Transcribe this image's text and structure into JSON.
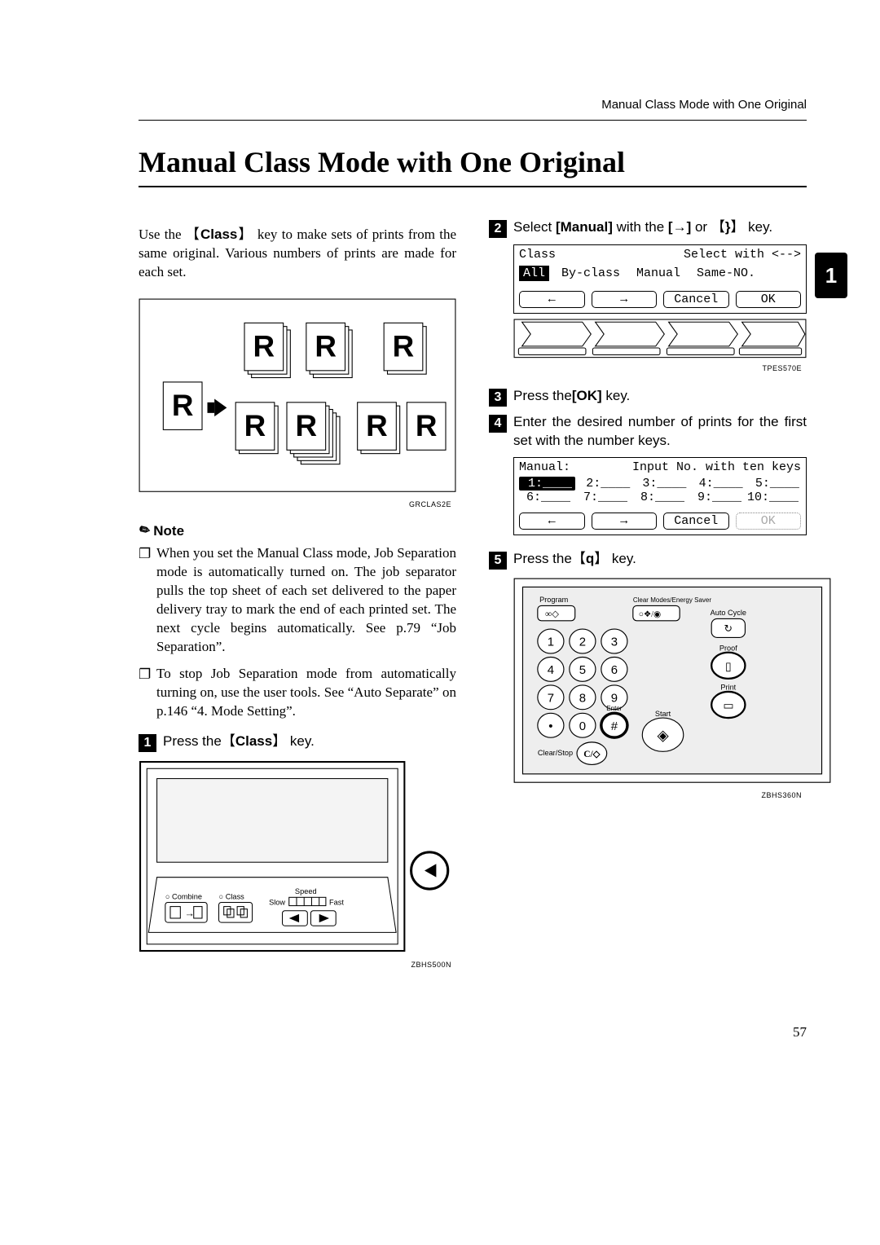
{
  "running_header": "Manual Class Mode with One Original",
  "section_title": "Manual Class Mode with One Original",
  "side_tab": "1",
  "intro_parts": {
    "a": "Use the ",
    "key": "Class",
    "b": " key to make sets of prints from the same original. Various numbers of prints are made for each set."
  },
  "fig_codes": {
    "fig1": "GRCLAS2E",
    "fig2": "ZBHS500N",
    "fig3": "TPES570E",
    "fig4": "ZBHS360N"
  },
  "note_label": "Note",
  "notes": [
    "When you set the Manual Class mode, Job Separation mode is automatically turned on. The job separator pulls the top sheet of each set delivered to the paper delivery tray to mark the end of each printed set. The next cycle begins automatically. See p.79 “Job Separation”.",
    "To stop Job Separation mode from automatically turning on, use the user tools. See “Auto Separate” on p.146 “4. Mode Setting”."
  ],
  "steps": {
    "1": {
      "pre": "Press the",
      "key": "Class",
      "post": " key."
    },
    "2": {
      "pre": "Select ",
      "bold": "[Manual]",
      "mid": " with the ",
      "arrow1": "[→]",
      "or": " or ",
      "arrow2": "}",
      "post": " key."
    },
    "3": {
      "pre": "Press the",
      "bold": "[OK]",
      "post": " key."
    },
    "4": {
      "text": "Enter the desired number of prints for the first set with the number keys."
    },
    "5": {
      "pre": "Press the",
      "key": "q",
      "post": " key."
    }
  },
  "lcd1": {
    "title_left": "Class",
    "title_right": "Select with <-->",
    "tabs": [
      "All",
      "By-class",
      "Manual",
      "Same-NO."
    ],
    "selected_tab_index": 0,
    "buttons": [
      "←",
      "→",
      "Cancel",
      "OK"
    ]
  },
  "lcd2": {
    "title_left": "Manual:",
    "title_right": "Input No. with ten keys",
    "rows": [
      [
        " 1:____",
        " 2:____",
        " 3:____",
        " 4:____",
        " 5:____"
      ],
      [
        " 6:____",
        " 7:____",
        " 8:____",
        " 9:____",
        "10:____"
      ]
    ],
    "selected_cell": "1",
    "buttons": [
      "←",
      "→",
      "Cancel",
      "OK"
    ],
    "disabled_button_index": 3
  },
  "panel_labels": {
    "combine": "Combine",
    "class": "Class",
    "speed": "Speed",
    "slow": "Slow",
    "fast": "Fast"
  },
  "keypad_labels": {
    "program": "Program",
    "clear_modes": "Clear Modes/Energy Saver",
    "auto_cycle": "Auto Cycle",
    "proof": "Proof",
    "print": "Print",
    "enter": "Enter",
    "start": "Start",
    "clear_stop": "Clear/Stop"
  },
  "page_number": "57"
}
